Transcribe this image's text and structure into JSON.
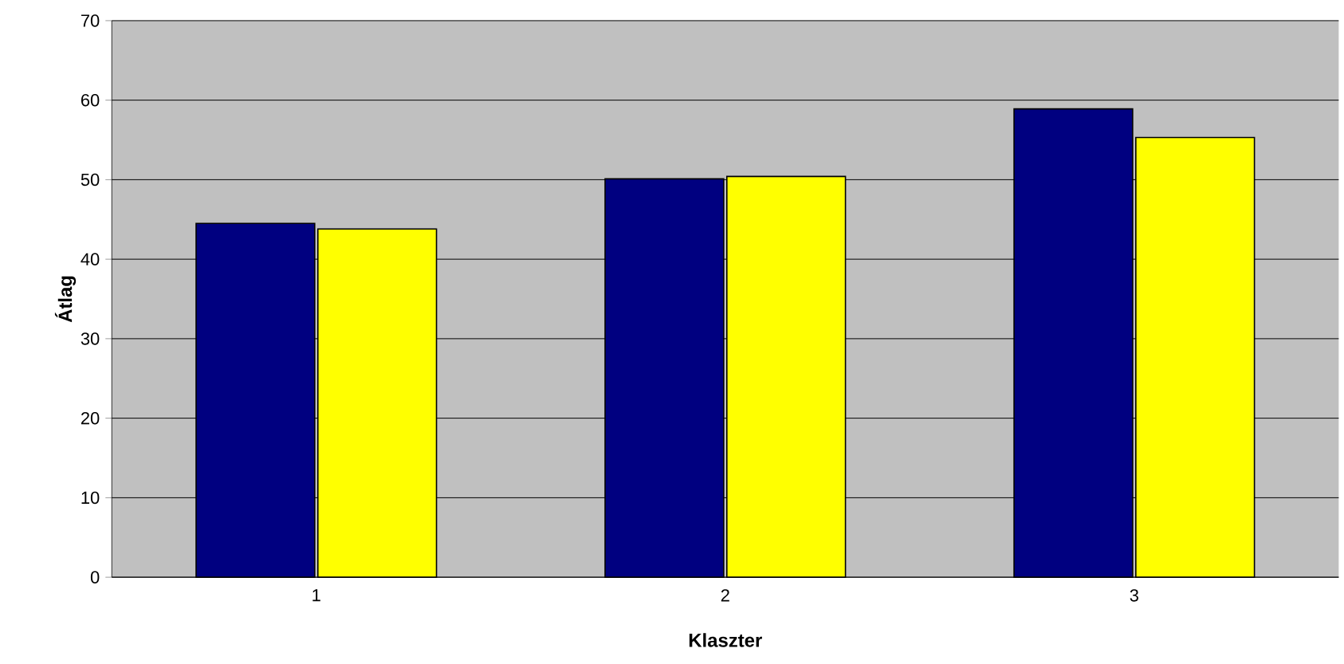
{
  "chart_data": {
    "type": "bar",
    "xlabel": "Klaszter",
    "ylabel": "Átlag",
    "categories": [
      "1",
      "2",
      "3"
    ],
    "series": [
      {
        "color": "#000080",
        "values": [
          44.5,
          50.1,
          58.9
        ]
      },
      {
        "color": "#ffff00",
        "values": [
          43.8,
          50.4,
          55.3
        ]
      }
    ],
    "ylim": [
      0,
      70
    ],
    "yticks": [
      0,
      10,
      20,
      30,
      40,
      50,
      60,
      70
    ],
    "grid": "y"
  }
}
